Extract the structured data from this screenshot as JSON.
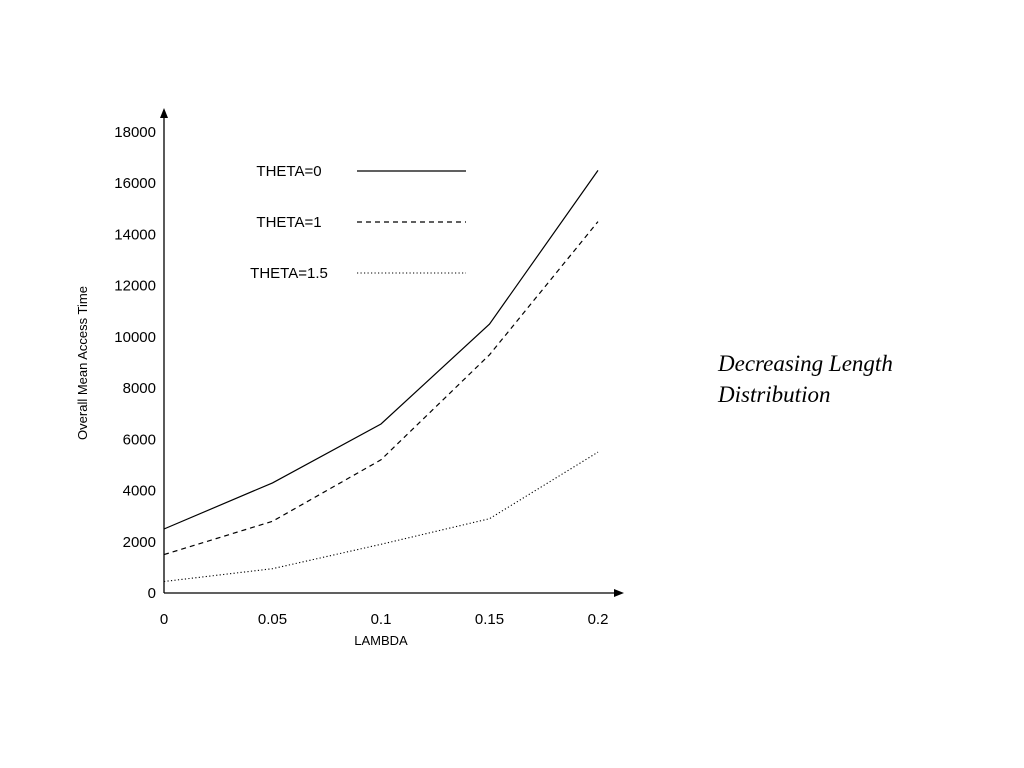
{
  "chart_data": {
    "type": "line",
    "title": "",
    "xlabel": "LAMBDA",
    "ylabel": "Overall Mean Access Time",
    "x": [
      0,
      0.05,
      0.1,
      0.15,
      0.2
    ],
    "x_tick_labels": [
      "0",
      "0.05",
      "0.1",
      "0.15",
      "0.2"
    ],
    "xlim": [
      0,
      0.2
    ],
    "ylim": [
      0,
      18000
    ],
    "y_ticks": [
      0,
      2000,
      4000,
      6000,
      8000,
      10000,
      12000,
      14000,
      16000,
      18000
    ],
    "y_tick_labels": [
      "0",
      "2000",
      "4000",
      "6000",
      "8000",
      "10000",
      "12000",
      "14000",
      "16000",
      "18000"
    ],
    "grid": false,
    "legend_position": "top-left",
    "series": [
      {
        "name": "THETA=0",
        "style": "solid",
        "color": "#000000",
        "values": [
          2500,
          4300,
          6600,
          10500,
          16500
        ]
      },
      {
        "name": "THETA=1",
        "style": "dashed",
        "color": "#000000",
        "values": [
          1500,
          2800,
          5200,
          9300,
          14500
        ]
      },
      {
        "name": "THETA=1.5",
        "style": "dotted",
        "color": "#000000",
        "values": [
          450,
          950,
          1900,
          2900,
          5500
        ]
      }
    ]
  },
  "annotation": {
    "line1": "Decreasing Length",
    "line2": "Distribution"
  }
}
